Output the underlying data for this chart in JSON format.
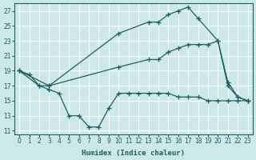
{
  "xlabel": "Humidex (Indice chaleur)",
  "bg_color": "#cce8e8",
  "line_color": "#1a6060",
  "grid_color": "#ffffff",
  "xlim": [
    -0.5,
    23.5
  ],
  "ylim": [
    10.5,
    28
  ],
  "xticks": [
    0,
    1,
    2,
    3,
    4,
    5,
    6,
    7,
    8,
    9,
    10,
    11,
    12,
    13,
    14,
    15,
    16,
    17,
    18,
    19,
    20,
    21,
    22,
    23
  ],
  "yticks": [
    11,
    13,
    15,
    17,
    19,
    21,
    23,
    25,
    27
  ],
  "line1_x": [
    0,
    1,
    2,
    3,
    10,
    13,
    14,
    15,
    16,
    17,
    18,
    20,
    21,
    22,
    23
  ],
  "line1_y": [
    19,
    18.5,
    17,
    17,
    24,
    25.5,
    25.5,
    26.5,
    27,
    27.5,
    26,
    23,
    17.5,
    15.5,
    15
  ],
  "line2_x": [
    0,
    3,
    10,
    13,
    14,
    15,
    16,
    17,
    18,
    19,
    20,
    21,
    22,
    23
  ],
  "line2_y": [
    19,
    17,
    19.5,
    20.5,
    20.5,
    21.5,
    22,
    22.5,
    22.5,
    22.5,
    23,
    17,
    15.5,
    15
  ],
  "line3_x": [
    0,
    2,
    3,
    4,
    5,
    6,
    7,
    8,
    9,
    10,
    11,
    12,
    13,
    14,
    15,
    16,
    17,
    18,
    19,
    20,
    21,
    22,
    23
  ],
  "line3_y": [
    19,
    17,
    16.5,
    16,
    13,
    13,
    11.5,
    11.5,
    14,
    16,
    16,
    16,
    16,
    16,
    16,
    15.5,
    15.5,
    15.5,
    15,
    15,
    15,
    15,
    15
  ]
}
